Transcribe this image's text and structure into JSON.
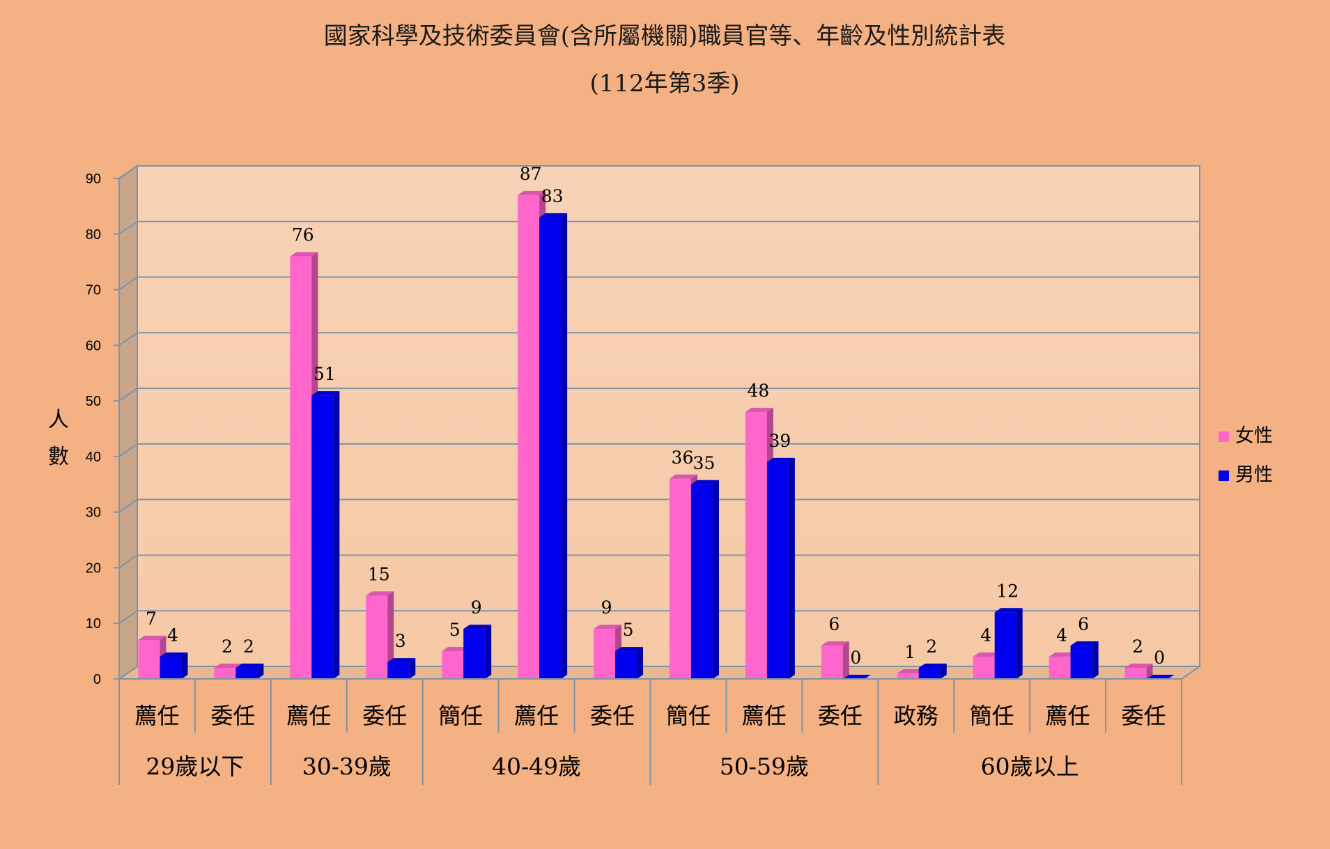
{
  "chart_data": {
    "type": "bar",
    "title": "國家科學及技術委員會(含所屬機關)職員官等、年齡及性別統計表",
    "subtitle": "(112年第3季)",
    "ylabel": "人數",
    "ylim": [
      0,
      90
    ],
    "yticks": [
      0,
      10,
      20,
      30,
      40,
      50,
      60,
      70,
      80,
      90
    ],
    "grid": true,
    "legend_position": "right",
    "groups": [
      {
        "label": "29歲以下",
        "categories": [
          "薦任",
          "委任"
        ]
      },
      {
        "label": "30-39歲",
        "categories": [
          "薦任",
          "委任"
        ]
      },
      {
        "label": "40-49歲",
        "categories": [
          "簡任",
          "薦任",
          "委任"
        ]
      },
      {
        "label": "50-59歲",
        "categories": [
          "簡任",
          "薦任",
          "委任"
        ]
      },
      {
        "label": "60歲以上",
        "categories": [
          "政務",
          "簡任",
          "薦任",
          "委任"
        ]
      }
    ],
    "categories": [
      "薦任",
      "委任",
      "薦任",
      "委任",
      "簡任",
      "薦任",
      "委任",
      "簡任",
      "薦任",
      "委任",
      "政務",
      "簡任",
      "薦任",
      "委任"
    ],
    "series": [
      {
        "name": "女性",
        "color": "#ff66cc",
        "values": [
          7,
          2,
          76,
          15,
          5,
          87,
          9,
          36,
          48,
          6,
          1,
          4,
          4,
          2
        ]
      },
      {
        "name": "男性",
        "color": "#0000ee",
        "values": [
          4,
          2,
          51,
          3,
          9,
          83,
          5,
          35,
          39,
          0,
          2,
          12,
          6,
          0
        ]
      }
    ]
  }
}
